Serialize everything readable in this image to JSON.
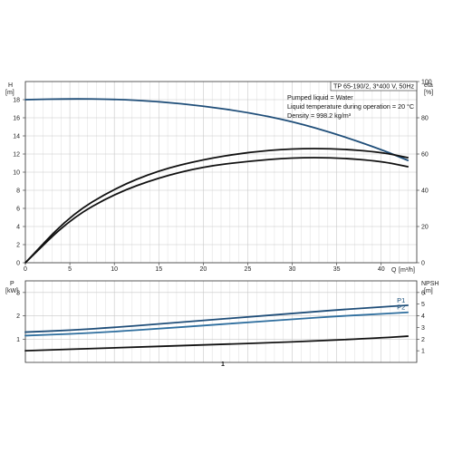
{
  "header": {
    "model": "TP 65-190/2, 3*400 V, 50Hz",
    "info_lines": [
      "Pumped liquid = Water",
      "Liquid temperature during operation = 20 °C",
      "Density = 998.2 kg/m³"
    ]
  },
  "colors": {
    "blue": "#1f4e79",
    "blue_light": "#2e6e9e",
    "black": "#111111",
    "grid": "#c8c8c8"
  },
  "chart_data": [
    {
      "type": "line",
      "panel": "upper",
      "xlabel": "Q [m³/h]",
      "x_symbol": "Q",
      "x_unit": "[m³/h]",
      "x_ticks": [
        0,
        5,
        10,
        15,
        20,
        25,
        30,
        35,
        40
      ],
      "xlim": [
        0,
        44
      ],
      "left_axis": {
        "symbol": "H",
        "unit": "[m]",
        "ticks": [
          0,
          2,
          4,
          6,
          8,
          10,
          12,
          14,
          16,
          18
        ],
        "ylim": [
          0,
          20
        ]
      },
      "right_axis": {
        "symbol": "eta",
        "unit": "[%]",
        "ticks": [
          0,
          20,
          40,
          60,
          80,
          100
        ],
        "ylim": [
          0,
          100
        ]
      },
      "series": [
        {
          "name": "",
          "axis": "left",
          "color": "#1f4e79",
          "x": [
            0,
            5,
            10,
            15,
            20,
            25,
            30,
            35,
            40,
            43
          ],
          "y": [
            18.0,
            18.1,
            18.05,
            17.8,
            17.3,
            16.6,
            15.6,
            14.2,
            12.5,
            11.3
          ]
        },
        {
          "name": "",
          "axis": "right",
          "color": "#111111",
          "x": [
            0,
            5,
            10,
            15,
            20,
            25,
            30,
            35,
            40,
            43
          ],
          "y": [
            0,
            26,
            41,
            51,
            57,
            61,
            63,
            63,
            61,
            58
          ]
        },
        {
          "name": "",
          "axis": "right",
          "color": "#111111",
          "x": [
            0,
            5,
            10,
            15,
            20,
            25,
            30,
            35,
            40,
            43
          ],
          "y": [
            0,
            24,
            38,
            47,
            53,
            56,
            58,
            58,
            56,
            53
          ]
        }
      ]
    },
    {
      "type": "line",
      "panel": "lower",
      "x_ticks": [],
      "xlim": [
        0,
        44
      ],
      "x_marker": "1",
      "left_axis": {
        "symbol": "P",
        "unit": "[kW]",
        "ticks": [
          1,
          2,
          3
        ],
        "ylim": [
          0,
          3.5
        ]
      },
      "right_axis": {
        "symbol": "NPSH",
        "unit": "[m]",
        "ticks": [
          1,
          2,
          3,
          4,
          5,
          6
        ],
        "ylim": [
          0,
          7
        ]
      },
      "series": [
        {
          "name": "P1",
          "axis": "left",
          "color": "#1f4e79",
          "x": [
            0,
            5,
            10,
            15,
            20,
            25,
            30,
            35,
            40,
            43
          ],
          "y": [
            1.3,
            1.38,
            1.5,
            1.65,
            1.8,
            1.95,
            2.1,
            2.25,
            2.38,
            2.45
          ]
        },
        {
          "name": "P2",
          "axis": "left",
          "color": "#2e6e9e",
          "x": [
            0,
            5,
            10,
            15,
            20,
            25,
            30,
            35,
            40,
            43
          ],
          "y": [
            1.15,
            1.22,
            1.32,
            1.45,
            1.58,
            1.72,
            1.85,
            1.98,
            2.08,
            2.15
          ]
        },
        {
          "name": "",
          "axis": "right",
          "color": "#111111",
          "x": [
            0,
            10,
            20,
            30,
            40,
            43
          ],
          "y": [
            1.0,
            1.25,
            1.5,
            1.75,
            2.1,
            2.25
          ]
        }
      ]
    }
  ]
}
